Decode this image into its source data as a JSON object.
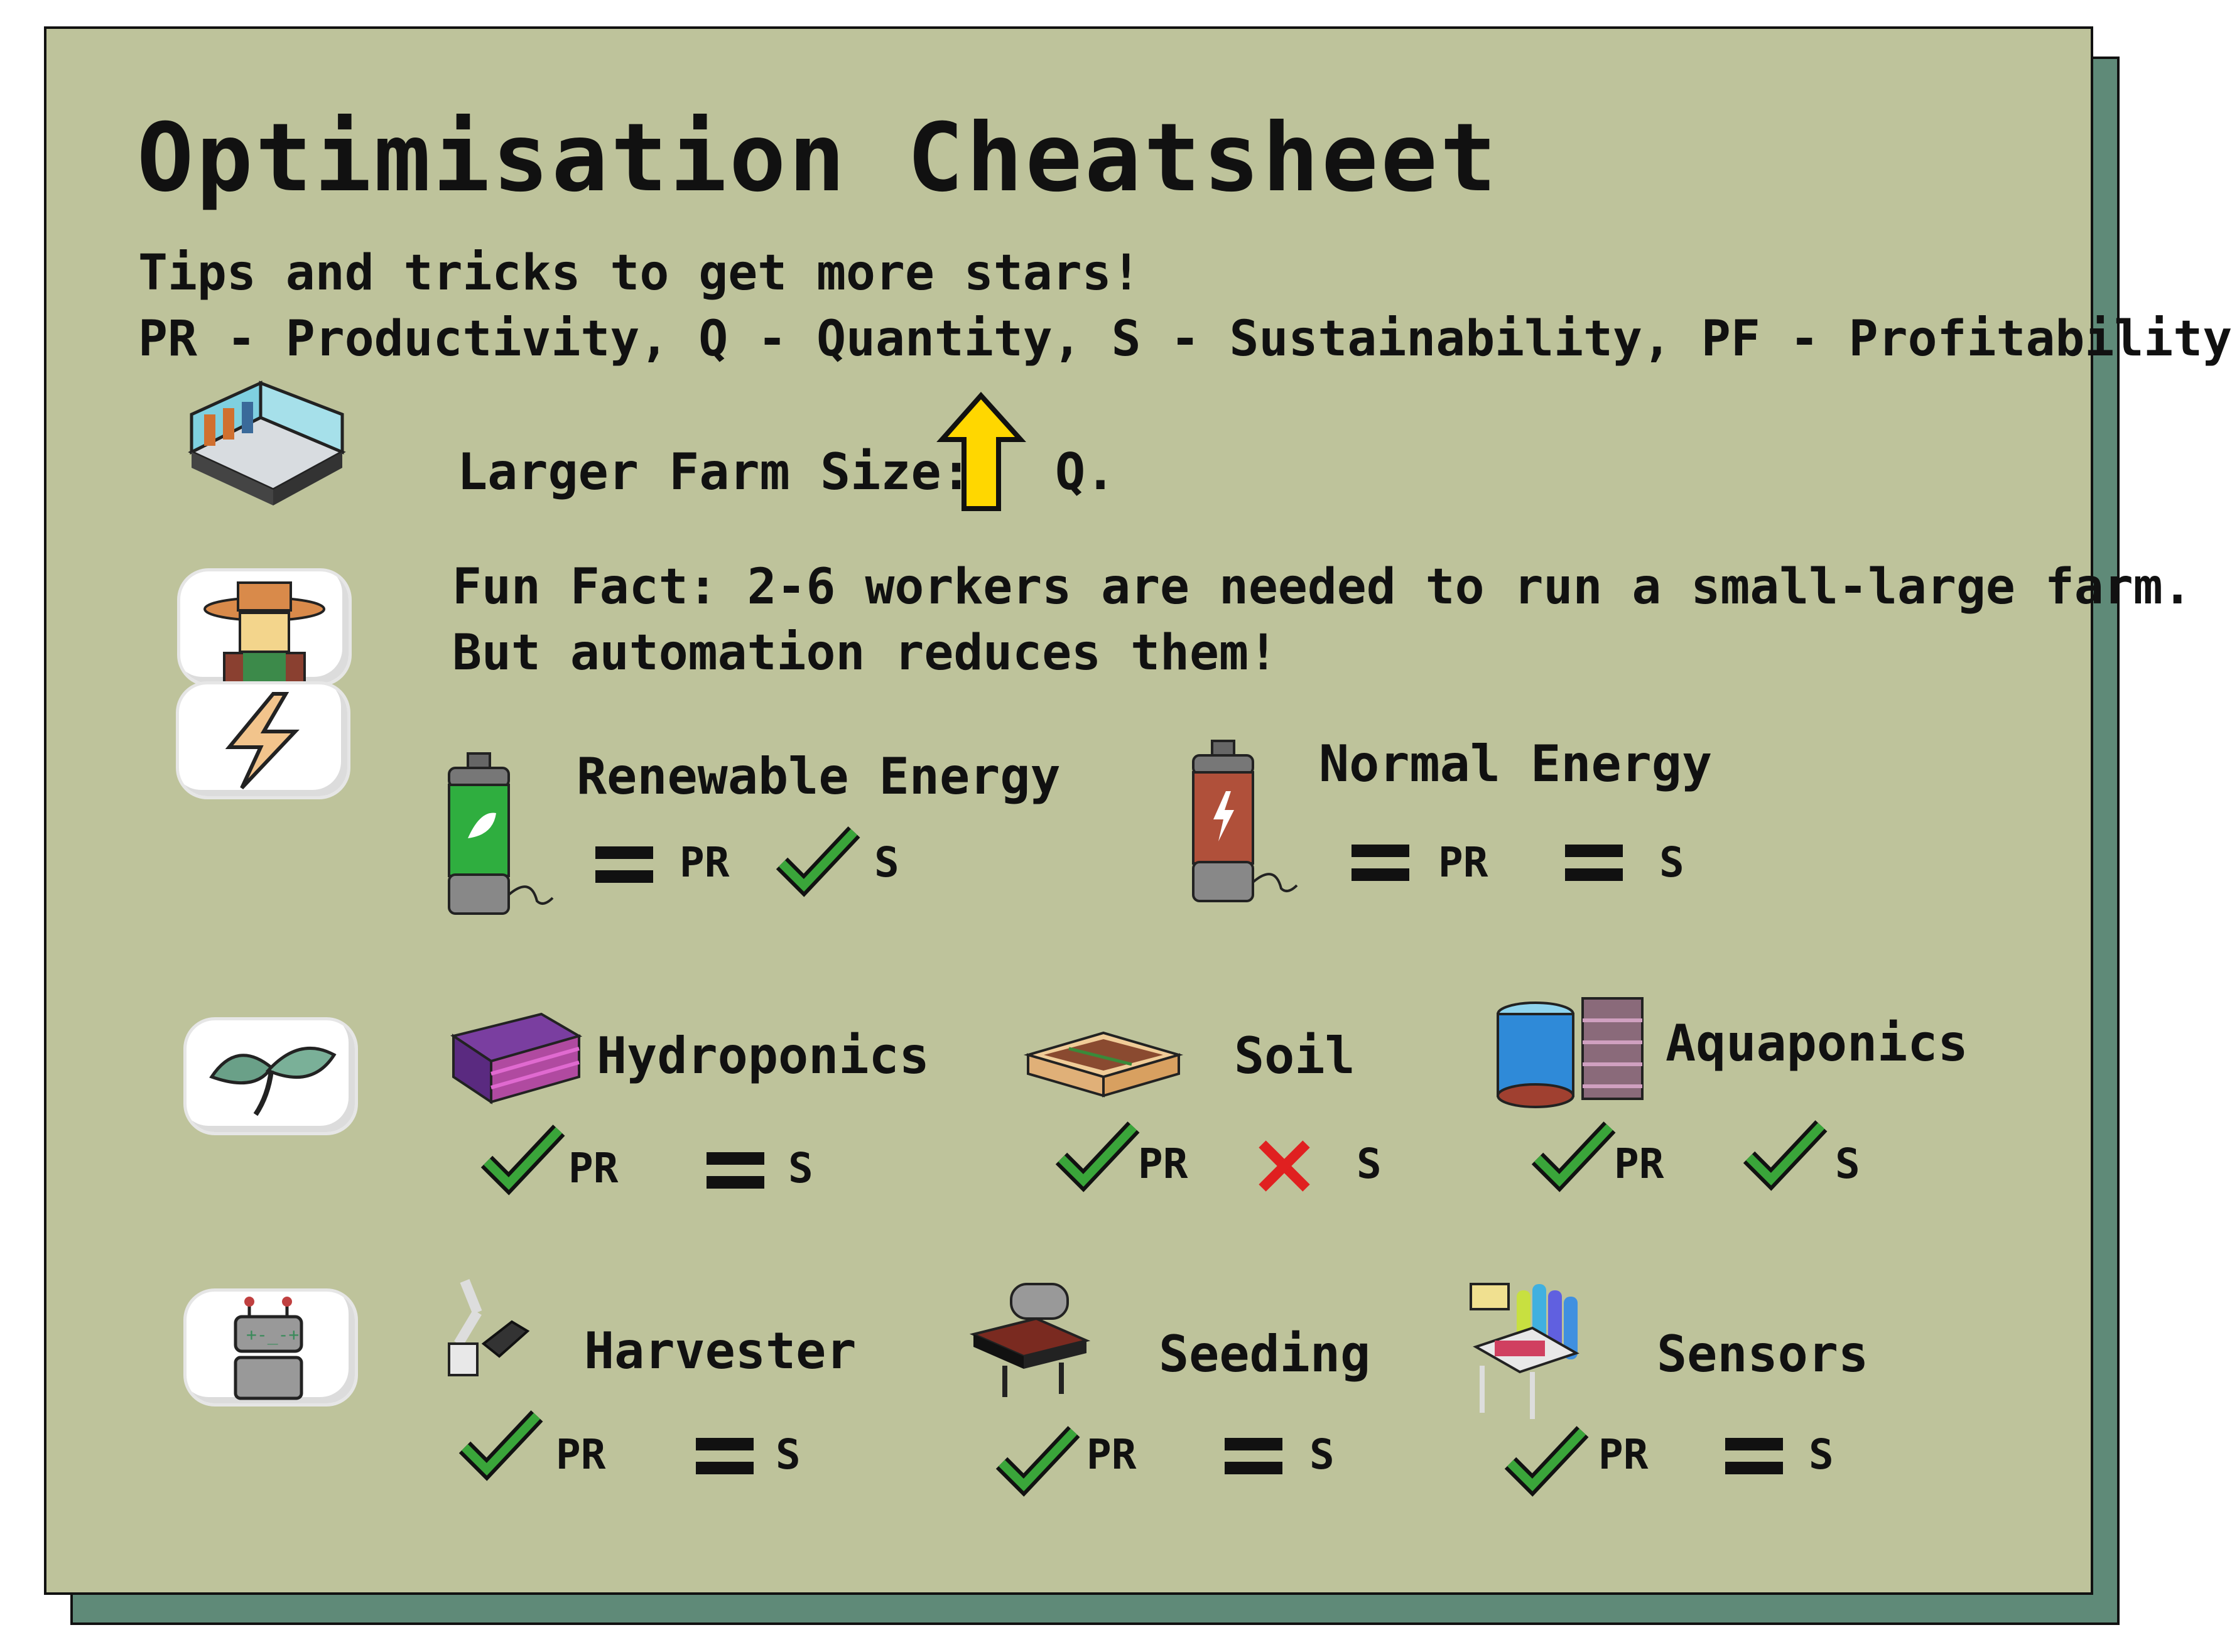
{
  "title": "Optimisation Cheatsheet",
  "subtitle": "Tips and tricks to get more stars!",
  "legend": "PR - Productivity, Q - Quantity, S - Sustainability, PF - Profitability",
  "farm_size": {
    "label": "Larger Farm Size:",
    "effect": "Q."
  },
  "fun_fact": {
    "line1": "Fun Fact: 2-6 workers are needed to run a small-large farm.",
    "line2": "But automation reduces them!"
  },
  "energy": {
    "renewable": {
      "label": "Renewable Energy",
      "pr": "PR",
      "s": "S"
    },
    "normal": {
      "label": "Normal Energy",
      "pr": "PR",
      "s": "S"
    }
  },
  "growing": {
    "hydroponics": {
      "label": "Hydroponics",
      "pr": "PR",
      "s": "S"
    },
    "soil": {
      "label": "Soil",
      "pr": "PR",
      "s": "S"
    },
    "aquaponics": {
      "label": "Aquaponics",
      "pr": "PR",
      "s": "S"
    }
  },
  "automation": {
    "harvester": {
      "label": "Harvester",
      "pr": "PR",
      "s": "S"
    },
    "seeding": {
      "label": "Seeding",
      "pr": "PR",
      "s": "S"
    },
    "sensors": {
      "label": "Sensors",
      "pr": "PR",
      "s": "S"
    }
  },
  "colors": {
    "card": "#bec39b",
    "shadow": "#5f8a78",
    "check": "#3aa53a",
    "cross": "#e02020",
    "arrow": "#ffd700"
  }
}
